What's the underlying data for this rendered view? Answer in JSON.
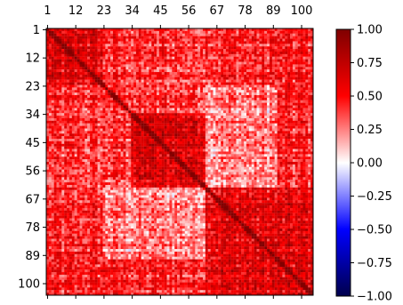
{
  "chart_data": {
    "type": "heatmap",
    "title": "",
    "xlabel": "",
    "ylabel": "",
    "n_rows": 104,
    "n_cols": 104,
    "x_tick_labels": [
      "1",
      "12",
      "23",
      "34",
      "45",
      "56",
      "67",
      "78",
      "89",
      "100"
    ],
    "y_tick_labels": [
      "1",
      "12",
      "23",
      "34",
      "45",
      "56",
      "67",
      "78",
      "89",
      "100"
    ],
    "x_axis_position": "top",
    "colormap": "seismic",
    "colormap_stops": [
      "#00004c",
      "#0000ff",
      "#ffffff",
      "#ff0000",
      "#7f0000"
    ],
    "vmin": -1.0,
    "vmax": 1.0,
    "diagonal_value": 1.0,
    "block_structure": [
      {
        "rows": "1-22",
        "cols": "1-22",
        "mean_value": 0.6
      },
      {
        "rows": "34-62",
        "cols": "34-62",
        "mean_value": 0.65
      },
      {
        "rows": "63-104",
        "cols": "63-104",
        "mean_value": 0.6
      },
      {
        "rows": "23-62",
        "cols": "63-90",
        "mean_value": 0.25
      },
      {
        "rows": "1-33",
        "cols": "23-62",
        "mean_value": 0.4
      }
    ],
    "background_value": 0.45,
    "colorbar": {
      "ticks": [
        1.0,
        0.75,
        0.5,
        0.25,
        0.0,
        -0.25,
        -0.5,
        -0.75,
        -1.0
      ],
      "tick_labels": [
        "1.00",
        "0.75",
        "0.50",
        "0.25",
        "0.00",
        "−0.25",
        "−0.50",
        "−0.75",
        "−1.00"
      ],
      "position": "right"
    }
  }
}
